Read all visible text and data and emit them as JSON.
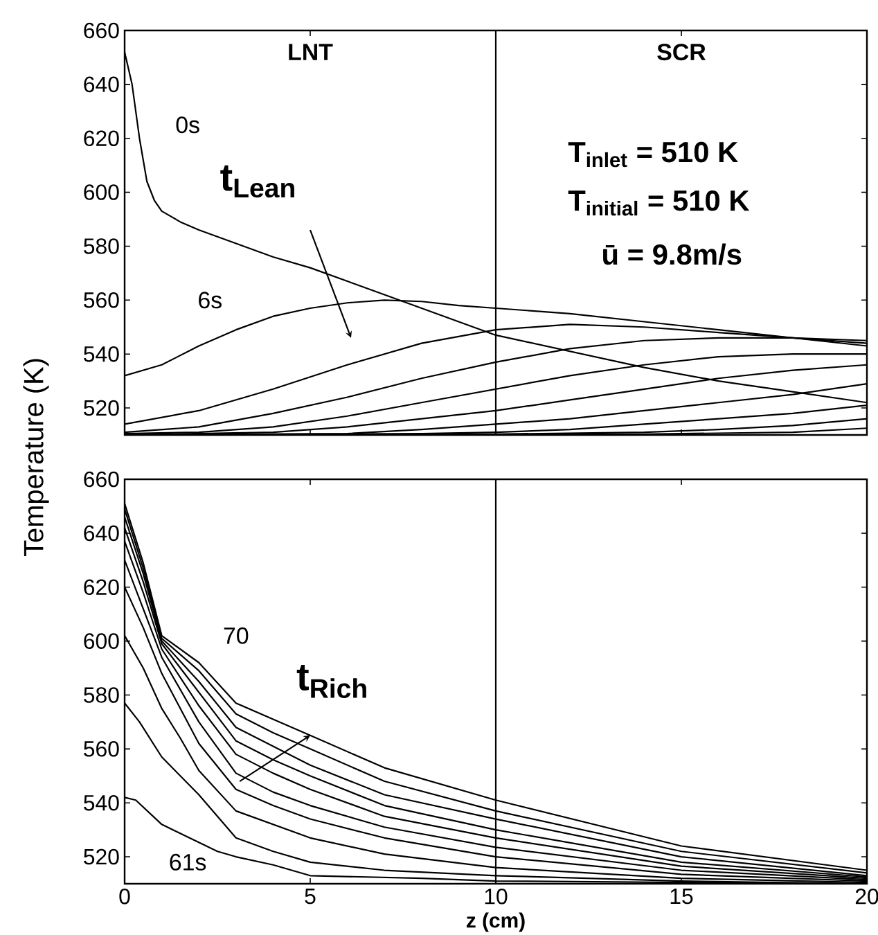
{
  "chart_data": [
    {
      "type": "line",
      "ylabel": "Temperature (K)",
      "xlim": [
        0,
        20
      ],
      "ylim": [
        510,
        660
      ],
      "xticks": [
        0,
        5,
        10,
        15,
        20
      ],
      "yticks": [
        520,
        540,
        560,
        580,
        600,
        620,
        640,
        660
      ],
      "tick_labels": "y",
      "marker": "none",
      "ref_lines": [
        {
          "axis": "x",
          "value": 10,
          "color": "#000000"
        }
      ],
      "annotations": [
        "LNT",
        "SCR",
        "T$_{inlet}$ = 510 K",
        "T$_{initial}$ = 510 K",
        "ū = 9.8m/s",
        "0s",
        "6s",
        "t$_{Lean}$"
      ],
      "series": [
        {
          "color": "#000000",
          "x": [
            0,
            0.2,
            0.4,
            0.6,
            0.8,
            1,
            1.5,
            2,
            3,
            4,
            5,
            6,
            7,
            8,
            9,
            10,
            12,
            14,
            16,
            18,
            20
          ],
          "values": [
            652,
            640,
            620,
            604,
            597,
            593,
            589,
            586,
            581,
            576,
            572,
            567,
            562,
            557,
            552,
            547,
            541,
            535,
            530,
            526,
            522
          ]
        },
        {
          "color": "#000000",
          "x": [
            0,
            1,
            2,
            3,
            4,
            5,
            6,
            7,
            8,
            9,
            10,
            12,
            14,
            16,
            18,
            20
          ],
          "values": [
            532,
            536,
            543,
            549,
            554,
            557,
            559,
            560,
            559.5,
            558,
            557,
            555,
            552,
            549,
            546,
            543
          ]
        },
        {
          "color": "#000000",
          "x": [
            0,
            2,
            4,
            6,
            8,
            10,
            12,
            14,
            16,
            18,
            20
          ],
          "values": [
            514,
            519,
            527,
            536,
            544,
            549,
            551,
            550,
            548,
            546,
            544
          ]
        },
        {
          "color": "#000000",
          "x": [
            0,
            2,
            4,
            6,
            8,
            10,
            12,
            14,
            16,
            18,
            20
          ],
          "values": [
            511,
            513,
            518,
            524,
            531,
            537,
            542,
            545,
            546,
            546,
            545
          ]
        },
        {
          "color": "#000000",
          "x": [
            0,
            2,
            4,
            6,
            8,
            10,
            12,
            14,
            16,
            18,
            20
          ],
          "values": [
            510.5,
            511,
            513,
            517,
            522,
            527,
            532,
            536,
            539,
            540,
            540
          ]
        },
        {
          "color": "#000000",
          "x": [
            0,
            4,
            6,
            8,
            10,
            12,
            14,
            16,
            18,
            20
          ],
          "values": [
            510,
            511,
            513,
            516,
            519,
            523,
            527,
            531,
            534,
            536
          ]
        },
        {
          "color": "#000000",
          "x": [
            0,
            6,
            8,
            10,
            12,
            14,
            16,
            18,
            20
          ],
          "values": [
            510,
            510.5,
            512,
            514,
            516,
            519,
            522,
            525,
            529
          ]
        },
        {
          "color": "#000000",
          "x": [
            0,
            8,
            10,
            12,
            14,
            16,
            18,
            20
          ],
          "values": [
            510,
            510.5,
            511,
            512,
            514,
            516,
            518,
            521
          ]
        },
        {
          "color": "#000000",
          "x": [
            0,
            10,
            14,
            16,
            18,
            20
          ],
          "values": [
            510,
            510.3,
            511,
            512,
            513.5,
            516
          ]
        },
        {
          "color": "#000000",
          "x": [
            0,
            14,
            18,
            20
          ],
          "values": [
            510,
            510.3,
            511,
            512.5
          ]
        }
      ]
    },
    {
      "type": "line",
      "xlabel": "z (cm)",
      "xlim": [
        0,
        20
      ],
      "ylim": [
        510,
        660
      ],
      "xticks": [
        0,
        5,
        10,
        15,
        20
      ],
      "yticks": [
        520,
        540,
        560,
        580,
        600,
        620,
        640,
        660
      ],
      "marker": "none",
      "ref_lines": [
        {
          "axis": "x",
          "value": 10,
          "color": "#000000"
        }
      ],
      "annotations": [
        "70",
        {
          "text": "t$_{Rich}$",
          "x": 5,
          "y": 565
        },
        "61s"
      ],
      "series": [
        {
          "color": "#000000",
          "x": [
            0,
            0.3,
            1,
            2.5,
            3,
            4,
            5,
            8,
            10,
            15,
            20
          ],
          "values": [
            542,
            541,
            532,
            522,
            520,
            517,
            513,
            512,
            511,
            510.5,
            510
          ]
        },
        {
          "color": "#000000",
          "x": [
            0,
            0.4,
            1,
            2,
            3,
            4,
            5,
            7,
            10,
            15,
            20
          ],
          "values": [
            577,
            570,
            557,
            543,
            527,
            522,
            518,
            515,
            513,
            511,
            510
          ]
        },
        {
          "color": "#000000",
          "x": [
            0,
            0.5,
            1,
            1.5,
            2,
            3,
            4,
            5,
            7,
            10,
            15,
            20
          ],
          "values": [
            602,
            590,
            575,
            564,
            552,
            537,
            532,
            527,
            521,
            516,
            512,
            510.5
          ]
        },
        {
          "color": "#000000",
          "x": [
            0,
            0.5,
            1,
            2,
            3,
            4,
            5,
            7,
            10,
            15,
            20
          ],
          "values": [
            620,
            605,
            588,
            562,
            545,
            539,
            534,
            527,
            520,
            513.5,
            511
          ]
        },
        {
          "color": "#000000",
          "x": [
            0,
            0.5,
            1,
            2,
            3,
            4,
            5,
            7,
            10,
            15,
            20
          ],
          "values": [
            630,
            612,
            594,
            570,
            551,
            544,
            539,
            531,
            523.5,
            515,
            511.5
          ]
        },
        {
          "color": "#000000",
          "x": [
            0,
            0.5,
            1,
            2,
            3,
            4,
            5,
            7,
            10,
            15,
            20
          ],
          "values": [
            637,
            618,
            597,
            576,
            558,
            551,
            545,
            535,
            527,
            516.5,
            512
          ]
        },
        {
          "color": "#000000",
          "x": [
            0,
            0.5,
            1,
            2,
            3,
            4,
            5,
            7,
            10,
            15,
            20
          ],
          "values": [
            642,
            622,
            599,
            581,
            563,
            556,
            550,
            539,
            530,
            518,
            512.5
          ]
        },
        {
          "color": "#000000",
          "x": [
            0,
            0.5,
            1,
            2,
            3,
            4,
            5,
            7,
            10,
            15,
            20
          ],
          "values": [
            646,
            625,
            600,
            585,
            568,
            561,
            554,
            543,
            534,
            520,
            513
          ]
        },
        {
          "color": "#000000",
          "x": [
            0,
            0.5,
            1,
            2,
            3,
            4,
            5,
            7,
            10,
            15,
            20
          ],
          "values": [
            649,
            627,
            601,
            589,
            573,
            566,
            560,
            548,
            537,
            522,
            514
          ]
        },
        {
          "color": "#000000",
          "x": [
            0,
            0.5,
            1,
            2,
            3,
            4,
            5,
            7,
            10,
            15,
            20
          ],
          "values": [
            651,
            629,
            602,
            592,
            577,
            571,
            565,
            553,
            541,
            524,
            515
          ]
        }
      ]
    }
  ]
}
